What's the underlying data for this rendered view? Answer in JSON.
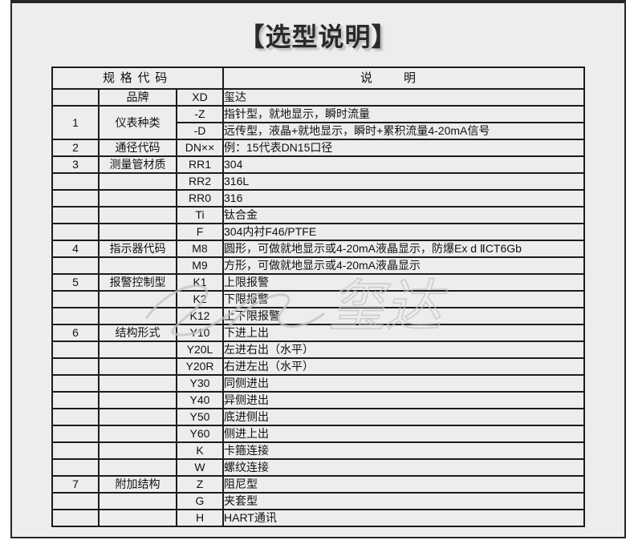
{
  "title": "【选型说明】",
  "watermark": "玺达",
  "colors": {
    "panel_bg": "#ededed",
    "border": "#1c1c1c",
    "title_text": "#2a2a2a",
    "watermark_gray": "#c3c3c3"
  },
  "table": {
    "header": {
      "spec_code": "规格代码",
      "description": "说明"
    },
    "rows": [
      {
        "num": "",
        "category": "品牌",
        "code": "XD",
        "desc": "玺达"
      },
      {
        "num": "1",
        "category": "仪表种类",
        "code": "-Z",
        "desc": "指针型，就地显示，瞬时流量",
        "left_rowspan": 2
      },
      {
        "code": "-D",
        "desc": "远传型，液晶+就地显示，瞬时+累积流量4-20mA信号",
        "left_merged": true
      },
      {
        "num": "2",
        "category": "通径代码",
        "code": "DN××",
        "desc": "例：15代表DN15口径"
      },
      {
        "num": "3",
        "category": "测量管材质",
        "code": "RR1",
        "desc": "304"
      },
      {
        "num": "",
        "category": "",
        "code": "RR2",
        "desc": "316L"
      },
      {
        "num": "",
        "category": "",
        "code": "RR0",
        "desc": "316"
      },
      {
        "num": "",
        "category": "",
        "code": "Ti",
        "desc": "钛合金"
      },
      {
        "num": "",
        "category": "",
        "code": "F",
        "desc": "304内衬F46/PTFE"
      },
      {
        "num": "4",
        "category": "指示器代码",
        "code": "M8",
        "desc": "圆形，可做就地显示或4-20mA液晶显示，防爆Ex d ⅡCT6Gb"
      },
      {
        "num": "",
        "category": "",
        "code": "M9",
        "desc": "方形，可做就地显示或4-20mA液晶显示"
      },
      {
        "num": "5",
        "category": "报警控制型",
        "code": "K1",
        "desc": "上限报警"
      },
      {
        "num": "",
        "category": "",
        "code": "K2",
        "desc": "下限报警"
      },
      {
        "num": "",
        "category": "",
        "code": "K12",
        "desc": "上下限报警"
      },
      {
        "num": "6",
        "category": "结构形式",
        "code": "Y10",
        "desc": "下进上出"
      },
      {
        "num": "",
        "category": "",
        "code": "Y20L",
        "desc": "左进右出（水平）"
      },
      {
        "num": "",
        "category": "",
        "code": "Y20R",
        "desc": "右进左出（水平）"
      },
      {
        "num": "",
        "category": "",
        "code": "Y30",
        "desc": "同侧进出"
      },
      {
        "num": "",
        "category": "",
        "code": "Y40",
        "desc": "异侧进出"
      },
      {
        "num": "",
        "category": "",
        "code": "Y50",
        "desc": "底进侧出"
      },
      {
        "num": "",
        "category": "",
        "code": "Y60",
        "desc": "侧进上出"
      },
      {
        "num": "",
        "category": "",
        "code": "K",
        "desc": "卡箍连接"
      },
      {
        "num": "",
        "category": "",
        "code": "W",
        "desc": "螺纹连接"
      },
      {
        "num": "7",
        "category": "附加结构",
        "code": "Z",
        "desc": "阻尼型"
      },
      {
        "num": "",
        "category": "",
        "code": "G",
        "desc": "夹套型"
      },
      {
        "num": "",
        "category": "",
        "code": "H",
        "desc": "HART通讯"
      }
    ]
  }
}
